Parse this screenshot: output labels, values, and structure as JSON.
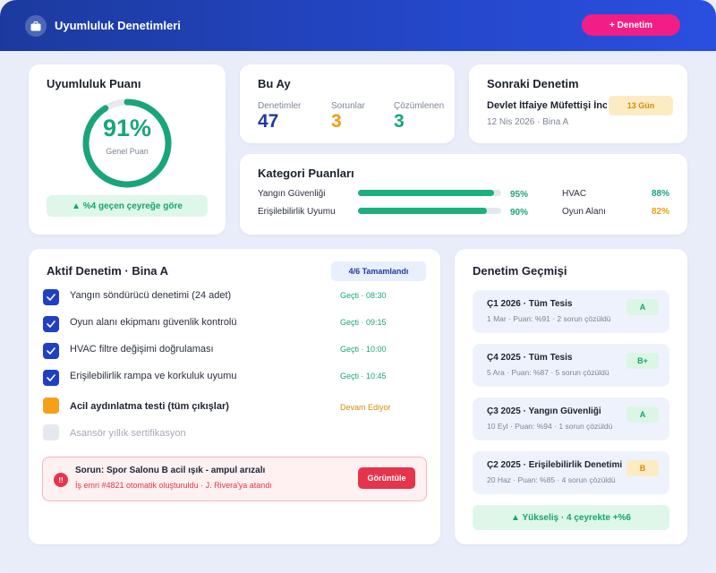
{
  "header": {
    "title": "Uyumluluk Denetimleri",
    "new_button": "+ Denetim",
    "icon": "briefcase-icon"
  },
  "score": {
    "title": "Uyumluluk Puanı",
    "value_text": "91%",
    "value": 0.91,
    "label": "Genel Puan",
    "trend": "▲ %4 geçen çeyreğe göre"
  },
  "this_month": {
    "title": "Bu Ay",
    "stats": [
      {
        "label": "Denetimler",
        "value": "47",
        "color": "#1f3aa5"
      },
      {
        "label": "Sorunlar",
        "value": "3",
        "color": "#f29a13"
      },
      {
        "label": "Çözümlenen",
        "value": "3",
        "color": "#19a57a"
      }
    ]
  },
  "next_audit": {
    "title": "Sonraki Denetim",
    "name": "Devlet İtfaiye Müfettişi İnceleme",
    "date": "12 Nis 2026 · Bina A",
    "days": "13 Gün"
  },
  "categories": {
    "title": "Kategori Puanları",
    "items": [
      {
        "label": "Yangın Güvenliği",
        "pct": "95%",
        "value": 0.95,
        "color": "#19a57a"
      },
      {
        "label": "Erişilebilirlik Uyumu",
        "pct": "90%",
        "value": 0.9,
        "color": "#19a57a"
      },
      {
        "label": "HVAC",
        "pct": "88%",
        "color": "#19a57a"
      },
      {
        "label": "Oyun Alanı",
        "pct": "82%",
        "color": "#f29a13"
      }
    ]
  },
  "active": {
    "title": "Aktif Denetim · Bina A",
    "progress": "4/6 Tamamlandı",
    "tasks": [
      {
        "text": "Yangın söndürücü denetimi (24 adet)",
        "status": "Geçti · 08:30",
        "state": "done"
      },
      {
        "text": "Oyun alanı ekipmanı güvenlik kontrolü",
        "status": "Geçti · 09:15",
        "state": "done"
      },
      {
        "text": "HVAC filtre değişimi doğrulaması",
        "status": "Geçti · 10:00",
        "state": "done"
      },
      {
        "text": "Erişilebilirlik rampa ve korkuluk uyumu",
        "status": "Geçti · 10:45",
        "state": "done"
      },
      {
        "text": "Acil aydınlatma testi (tüm çıkışlar)",
        "status": "Devam Ediyor",
        "state": "progress"
      },
      {
        "text": "Asansör yıllık sertifikasyon",
        "status": "",
        "state": "pending"
      }
    ],
    "issue": {
      "title": "Sorun: Spor Salonu B acil ışık - ampul arızalı",
      "sub": "İş emri #4821 otomatik oluşturuldu · J. Rivera'ya atandı",
      "button": "Görüntüle",
      "icon_text": "!!"
    }
  },
  "history": {
    "title": "Denetim Geçmişi",
    "items": [
      {
        "title": "Ç1 2026 · Tüm Tesis",
        "sub": "1 Mar · Puan: %91 · 2 sorun çözüldü",
        "grade": "A",
        "grade_bg": "#dcf6e6",
        "grade_color": "#17a56b"
      },
      {
        "title": "Ç4 2025 · Tüm Tesis",
        "sub": "5 Ara · Puan: %87 · 5 sorun çözüldü",
        "grade": "B+",
        "grade_bg": "#dcf6e6",
        "grade_color": "#17a56b"
      },
      {
        "title": "Ç3 2025 · Yangın Güvenliği",
        "sub": "10 Eyl · Puan: %94 · 1 sorun çözüldü",
        "grade": "A",
        "grade_bg": "#dcf6e6",
        "grade_color": "#17a56b"
      },
      {
        "title": "Ç2 2025 · Erişilebilirlik Denetimi",
        "sub": "20 Haz · Puan: %85 · 4 sorun çözüldü",
        "grade": "B",
        "grade_bg": "#fdebc3",
        "grade_color": "#d58c07"
      }
    ],
    "trend": "▲ Yükseliş · 4 çeyrekte +%6"
  }
}
